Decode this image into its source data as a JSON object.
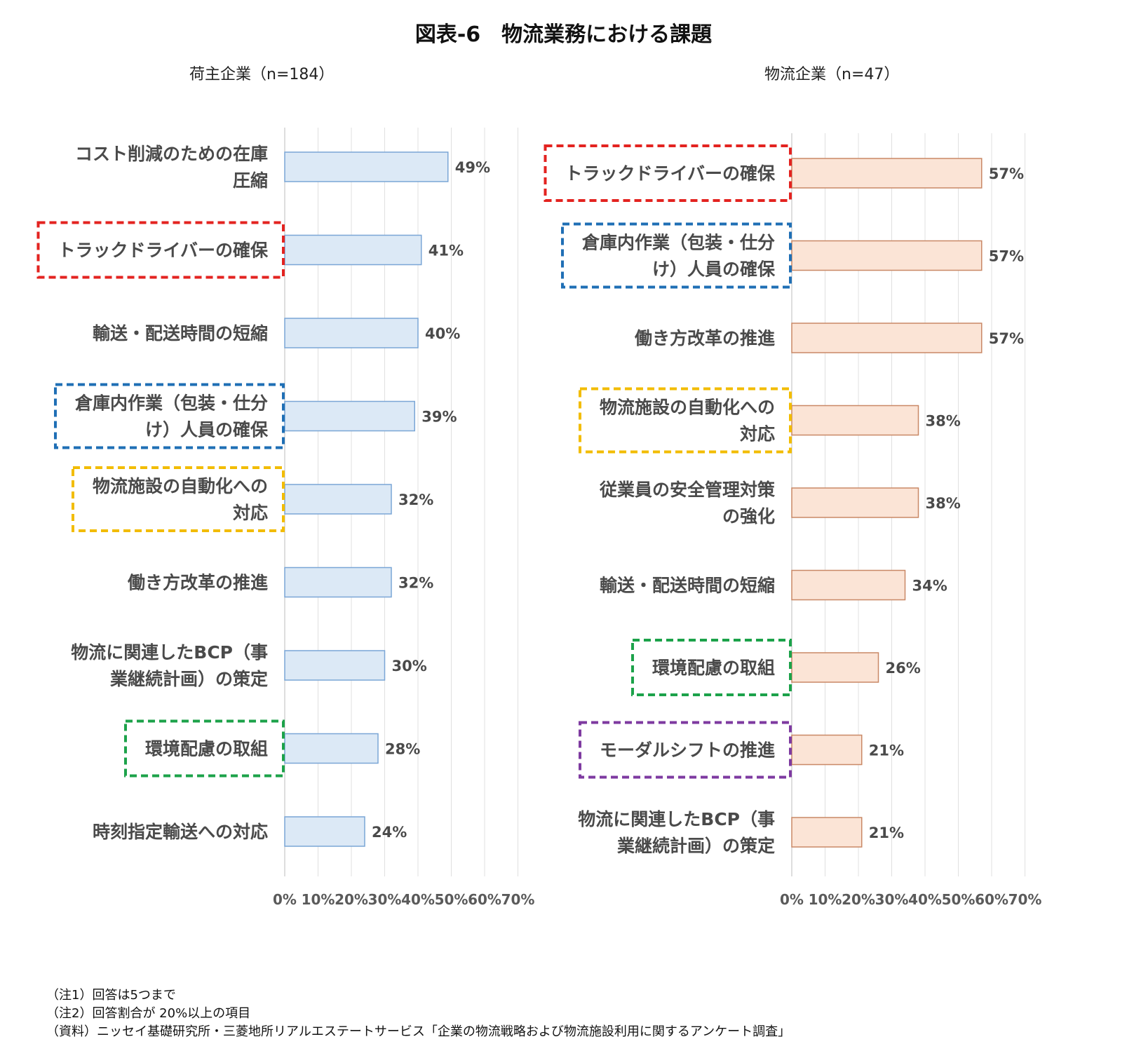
{
  "title": "図表-6　物流業務における課題",
  "chart_data": [
    {
      "type": "bar",
      "orientation": "horizontal",
      "subtitle": "荷主企業（n=184）",
      "bar_color": "#dce9f6",
      "bar_border": "#7aa6d6",
      "xlim": [
        0,
        70
      ],
      "xticks": [
        "0%",
        "10%",
        "20%",
        "30%",
        "40%",
        "50%",
        "60%",
        "70%"
      ],
      "categories": [
        [
          "コスト削減のための在庫",
          "圧縮"
        ],
        [
          "トラックドライバーの確保"
        ],
        [
          "輸送・配送時間の短縮"
        ],
        [
          "倉庫内作業（包装・仕分",
          "け）人員の確保"
        ],
        [
          "物流施設の自動化への",
          "対応"
        ],
        [
          "働き方改革の推進"
        ],
        [
          "物流に関連したBCP（事",
          "業継続計画）の策定"
        ],
        [
          "環境配慮の取組"
        ],
        [
          "時刻指定輸送への対応"
        ]
      ],
      "values": [
        49,
        41,
        40,
        39,
        32,
        32,
        30,
        28,
        24
      ],
      "value_labels": [
        "49%",
        "41%",
        "40%",
        "39%",
        "32%",
        "32%",
        "30%",
        "28%",
        "24%"
      ],
      "highlights": [
        null,
        "#e32320",
        null,
        "#1f6fb5",
        "#f2bc00",
        null,
        null,
        "#1ca24a",
        null
      ]
    },
    {
      "type": "bar",
      "orientation": "horizontal",
      "subtitle": "物流企業（n=47）",
      "bar_color": "#fbe4d6",
      "bar_border": "#c98866",
      "xlim": [
        0,
        70
      ],
      "xticks": [
        "0%",
        "10%",
        "20%",
        "30%",
        "40%",
        "50%",
        "60%",
        "70%"
      ],
      "categories": [
        [
          "トラックドライバーの確保"
        ],
        [
          "倉庫内作業（包装・仕分",
          "け）人員の確保"
        ],
        [
          "働き方改革の推進"
        ],
        [
          "物流施設の自動化への",
          "対応"
        ],
        [
          "従業員の安全管理対策",
          "の強化"
        ],
        [
          "輸送・配送時間の短縮"
        ],
        [
          "環境配慮の取組"
        ],
        [
          "モーダルシフトの推進"
        ],
        [
          "物流に関連したBCP（事",
          "業継続計画）の策定"
        ]
      ],
      "values": [
        57,
        57,
        57,
        38,
        38,
        34,
        26,
        21,
        21
      ],
      "value_labels": [
        "57%",
        "57%",
        "57%",
        "38%",
        "38%",
        "34%",
        "26%",
        "21%",
        "21%"
      ],
      "highlights": [
        "#e32320",
        "#1f6fb5",
        null,
        "#f2bc00",
        null,
        null,
        "#1ca24a",
        "#7e3aa0",
        null
      ]
    }
  ],
  "notes": [
    "（注1）回答は5つまで",
    "（注2）回答割合が 20%以上の項目",
    "（資料）ニッセイ基礎研究所・三菱地所リアルエステートサービス「企業の物流戦略および物流施設利用に関するアンケート調査」"
  ]
}
